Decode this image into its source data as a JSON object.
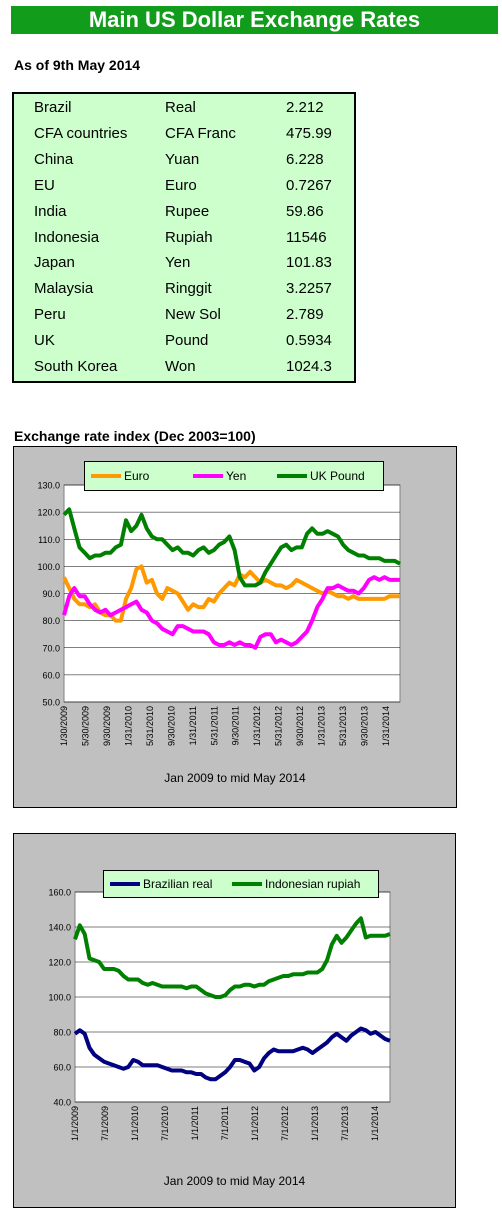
{
  "header": {
    "title": "Main US Dollar Exchange Rates"
  },
  "as_of": "As of 9th May 2014",
  "rates_table": {
    "rows": [
      {
        "country": "Brazil",
        "currency": "Real",
        "rate": "2.212"
      },
      {
        "country": "CFA countries",
        "currency": "CFA Franc",
        "rate": "475.99"
      },
      {
        "country": "China",
        "currency": "Yuan",
        "rate": "6.228"
      },
      {
        "country": "EU",
        "currency": "Euro",
        "rate": "0.7267"
      },
      {
        "country": "India",
        "currency": "Rupee",
        "rate": "59.86"
      },
      {
        "country": "Indonesia",
        "currency": "Rupiah",
        "rate": "11546"
      },
      {
        "country": "Japan",
        "currency": "Yen",
        "rate": "101.83"
      },
      {
        "country": "Malaysia",
        "currency": "Ringgit",
        "rate": "3.2257"
      },
      {
        "country": "Peru",
        "currency": "New Sol",
        "rate": "2.789"
      },
      {
        "country": "UK",
        "currency": "Pound",
        "rate": "0.5934"
      },
      {
        "country": "South Korea",
        "currency": "Won",
        "rate": "1024.3"
      }
    ]
  },
  "chart1_title": "Exchange rate index (Dec 2003=100)",
  "colors": {
    "banner": "#119c1c",
    "table_bg": "#ccffcc",
    "panel_bg": "#c0c0c0",
    "euro": "#ff9900",
    "yen": "#ff00ff",
    "uk_pound": "#008000",
    "real": "#000080",
    "rupiah": "#008000"
  },
  "chart_data": [
    {
      "type": "line",
      "title": "",
      "xlabel": "Jan 2009 to mid May 2014",
      "ylabel": "",
      "ylim": [
        50,
        130
      ],
      "yticks": [
        "130.0",
        "120.0",
        "110.0",
        "100.0",
        "90.0",
        "80.0",
        "70.0",
        "60.0",
        "50.0"
      ],
      "xticks": [
        "1/30/2009",
        "5/30/2009",
        "9/30/2009",
        "1/31/2010",
        "5/31/2010",
        "9/30/2010",
        "1/31/2011",
        "5/31/2011",
        "9/30/2011",
        "1/31/2012",
        "5/31/2012",
        "9/30/2012",
        "1/31/2013",
        "5/31/2013",
        "9/30/2013",
        "1/31/2014"
      ],
      "grid": true,
      "legend_position": "top",
      "x": [
        0,
        1,
        2,
        3,
        4,
        5,
        6,
        7,
        8,
        9,
        10,
        11,
        12,
        13,
        14,
        15,
        16,
        17,
        18,
        19,
        20,
        21,
        22,
        23,
        24,
        25,
        26,
        27,
        28,
        29,
        30,
        31,
        32,
        33,
        34,
        35,
        36,
        37,
        38,
        39,
        40,
        41,
        42,
        43,
        44,
        45,
        46,
        47,
        48,
        49,
        50,
        51,
        52,
        53,
        54,
        55,
        56,
        57,
        58,
        59,
        60,
        61,
        62,
        63,
        64,
        65
      ],
      "series": [
        {
          "name": "Euro",
          "color": "#ff9900",
          "values": [
            96,
            92,
            88,
            86,
            86,
            85,
            86,
            83,
            82,
            82,
            80,
            80,
            88,
            92,
            99,
            100,
            94,
            95,
            90,
            88,
            92,
            91,
            90,
            87,
            84,
            86,
            85,
            85,
            88,
            87,
            90,
            92,
            94,
            93,
            97,
            96,
            98,
            96,
            94,
            95,
            94,
            93,
            93,
            92,
            93,
            95,
            94,
            93,
            92,
            91,
            90,
            91,
            90,
            89,
            89,
            88,
            89,
            88,
            88,
            88,
            88,
            88,
            88,
            89,
            89,
            89
          ]
        },
        {
          "name": "Yen",
          "color": "#ff00ff",
          "values": [
            82,
            89,
            92,
            89,
            89,
            86,
            84,
            83,
            84,
            82,
            83,
            84,
            85,
            86,
            87,
            84,
            83,
            80,
            79,
            77,
            76,
            75,
            78,
            78,
            77,
            76,
            76,
            76,
            75,
            72,
            71,
            71,
            72,
            71,
            72,
            71,
            71,
            70,
            74,
            75,
            75,
            72,
            73,
            72,
            71,
            72,
            74,
            76,
            80,
            85,
            88,
            92,
            92,
            93,
            92,
            91,
            91,
            90,
            92,
            95,
            96,
            95,
            96,
            95,
            95,
            95
          ]
        },
        {
          "name": "UK Pound",
          "color": "#008000",
          "values": [
            119,
            121,
            114,
            107,
            105,
            103,
            104,
            104,
            105,
            105,
            107,
            108,
            117,
            113,
            115,
            119,
            114,
            111,
            110,
            110,
            108,
            106,
            107,
            105,
            105,
            104,
            106,
            107,
            105,
            106,
            108,
            109,
            111,
            106,
            96,
            93,
            93,
            93,
            94,
            98,
            101,
            104,
            107,
            108,
            106,
            107,
            107,
            112,
            114,
            112,
            112,
            113,
            112,
            111,
            108,
            106,
            105,
            104,
            104,
            103,
            103,
            103,
            102,
            102,
            102,
            101
          ]
        }
      ]
    },
    {
      "type": "line",
      "title": "",
      "xlabel": "Jan 2009 to mid May 2014",
      "ylabel": "",
      "ylim": [
        40,
        160
      ],
      "yticks": [
        "160.0",
        "140.0",
        "120.0",
        "100.0",
        "80.0",
        "60.0",
        "40.0"
      ],
      "xticks": [
        "1/1/2009",
        "7/1/2009",
        "1/1/2010",
        "7/1/2010",
        "1/1/2011",
        "7/1/2011",
        "1/1/2012",
        "7/1/2012",
        "1/1/2013",
        "7/1/2013",
        "1/1/2014"
      ],
      "grid": true,
      "legend_position": "top",
      "x": [
        0,
        1,
        2,
        3,
        4,
        5,
        6,
        7,
        8,
        9,
        10,
        11,
        12,
        13,
        14,
        15,
        16,
        17,
        18,
        19,
        20,
        21,
        22,
        23,
        24,
        25,
        26,
        27,
        28,
        29,
        30,
        31,
        32,
        33,
        34,
        35,
        36,
        37,
        38,
        39,
        40,
        41,
        42,
        43,
        44,
        45,
        46,
        47,
        48,
        49,
        50,
        51,
        52,
        53,
        54,
        55,
        56,
        57,
        58,
        59,
        60,
        61,
        62,
        63,
        64,
        65
      ],
      "series": [
        {
          "name": "Brazilian real",
          "color": "#000080",
          "values": [
            79,
            81,
            79,
            71,
            67,
            65,
            63,
            62,
            61,
            60,
            59,
            60,
            64,
            63,
            61,
            61,
            61,
            61,
            60,
            59,
            58,
            58,
            58,
            57,
            57,
            56,
            56,
            54,
            53,
            53,
            55,
            57,
            60,
            64,
            64,
            63,
            62,
            58,
            60,
            65,
            68,
            70,
            69,
            69,
            69,
            69,
            70,
            71,
            70,
            68,
            70,
            72,
            74,
            77,
            79,
            77,
            75,
            78,
            80,
            82,
            81,
            79,
            80,
            78,
            76,
            75
          ]
        },
        {
          "name": "Indonesian rupiah",
          "color": "#008000",
          "values": [
            133,
            141,
            136,
            122,
            121,
            120,
            116,
            116,
            116,
            115,
            112,
            110,
            110,
            110,
            108,
            107,
            108,
            107,
            106,
            106,
            106,
            106,
            106,
            105,
            106,
            106,
            104,
            102,
            101,
            100,
            100,
            101,
            104,
            106,
            106,
            107,
            107,
            106,
            107,
            107,
            109,
            110,
            111,
            112,
            112,
            113,
            113,
            113,
            114,
            114,
            114,
            116,
            121,
            130,
            135,
            131,
            134,
            138,
            142,
            145,
            134,
            135,
            135,
            135,
            135,
            136
          ]
        }
      ]
    }
  ]
}
